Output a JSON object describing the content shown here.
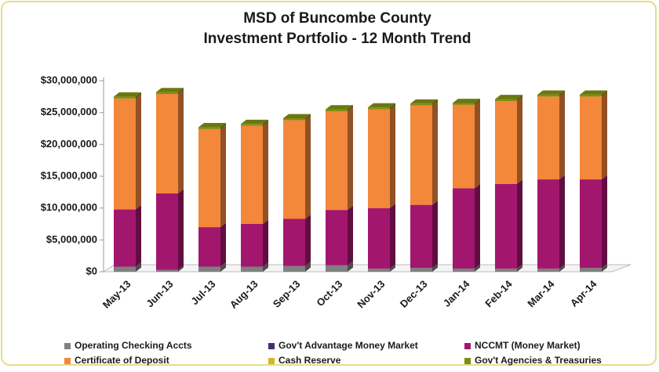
{
  "chart_data": {
    "type": "bar3d_stacked",
    "title": "MSD of Buncombe County",
    "subtitle": "Investment Portfolio - 12 Month Trend",
    "categories": [
      "May-13",
      "Jun-13",
      "Jul-13",
      "Aug-13",
      "Sep-13",
      "Oct-13",
      "Nov-13",
      "Dec-13",
      "Jan-14",
      "Feb-14",
      "Mar-14",
      "Apr-14"
    ],
    "series": [
      {
        "name": "Operating Checking Accts",
        "color": "#808080",
        "values": [
          800000,
          300000,
          800000,
          800000,
          900000,
          1000000,
          500000,
          600000,
          500000,
          500000,
          500000,
          600000
        ]
      },
      {
        "name": "Gov't Advantage Money Market",
        "color": "#4b2a7a",
        "values": [
          0,
          0,
          0,
          0,
          0,
          0,
          0,
          0,
          0,
          0,
          0,
          0
        ]
      },
      {
        "name": "NCCMT (Money Market)",
        "color": "#a3166e",
        "values": [
          9000000,
          12000000,
          6200000,
          6700000,
          7400000,
          8700000,
          9500000,
          9900000,
          12600000,
          13300000,
          14000000,
          13900000
        ]
      },
      {
        "name": "Certificate of Deposit",
        "color": "#f3873a",
        "values": [
          17400000,
          15600000,
          15400000,
          15400000,
          15500000,
          15500000,
          15500000,
          15600000,
          13100000,
          13000000,
          13000000,
          13000000
        ]
      },
      {
        "name": "Cash  Reserve",
        "color": "#d9b526",
        "values": [
          0,
          0,
          0,
          0,
          0,
          0,
          0,
          0,
          0,
          0,
          0,
          0
        ]
      },
      {
        "name": "Gov't Agencies & Treasuries",
        "color": "#7f8c12",
        "values": [
          300000,
          300000,
          300000,
          300000,
          300000,
          300000,
          300000,
          300000,
          300000,
          300000,
          300000,
          300000
        ]
      }
    ],
    "ylim": [
      0,
      30000000
    ],
    "yticks": [
      {
        "value": 0,
        "label": "$0"
      },
      {
        "value": 5000000,
        "label": "$5,000,000"
      },
      {
        "value": 10000000,
        "label": "$10,000,000"
      },
      {
        "value": 15000000,
        "label": "$15,000,000"
      },
      {
        "value": 20000000,
        "label": "$20,000,000"
      },
      {
        "value": 25000000,
        "label": "$25,000,000"
      },
      {
        "value": 30000000,
        "label": "$30,000,000"
      }
    ],
    "grid": false,
    "legend": "bottom"
  }
}
